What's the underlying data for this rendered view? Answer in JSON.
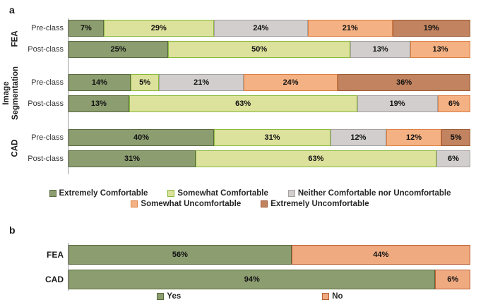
{
  "panel_a_letter": "a",
  "panel_b_letter": "b",
  "chart_data": [
    {
      "type": "bar",
      "panel": "a",
      "orientation": "horizontal",
      "stacked": true,
      "unit": "%",
      "xlim": [
        0,
        100
      ],
      "grid": false,
      "legend_position": "bottom",
      "series_labels": [
        "Extremely Comfortable",
        "Somewhat Comfortable",
        "Neither Comfortable nor Uncomfortable",
        "Somewhat Uncomfortable",
        "Extremely Uncomfortable"
      ],
      "series_fills": [
        "#8C9D70",
        "#DCE19C",
        "#D1CECD",
        "#F4B183",
        "#C28460"
      ],
      "series_borders": [
        "#5A6A3F",
        "#8ABA3C",
        "#A5A1A0",
        "#DC8044",
        "#9D5B35"
      ],
      "groups": [
        {
          "name": "FEA",
          "rows": [
            {
              "label": "Pre-class",
              "values": [
                7,
                29,
                24,
                21,
                19
              ]
            },
            {
              "label": "Post-class",
              "values": [
                25,
                50,
                13,
                13,
                0
              ]
            }
          ]
        },
        {
          "name": "Image\nSegmentation",
          "rows": [
            {
              "label": "Pre-class",
              "values": [
                14,
                5,
                21,
                24,
                36
              ]
            },
            {
              "label": "Post-class",
              "values": [
                13,
                63,
                19,
                6,
                0
              ]
            }
          ]
        },
        {
          "name": "CAD",
          "rows": [
            {
              "label": "Pre-class",
              "values": [
                40,
                31,
                12,
                12,
                5
              ]
            },
            {
              "label": "Post-class",
              "values": [
                31,
                63,
                6,
                0,
                0
              ]
            }
          ]
        }
      ]
    },
    {
      "type": "bar",
      "panel": "b",
      "orientation": "horizontal",
      "stacked": true,
      "unit": "%",
      "xlim": [
        0,
        100
      ],
      "grid": false,
      "legend_position": "bottom",
      "series_labels": [
        "Yes",
        "No"
      ],
      "series_fills": [
        "#8C9D70",
        "#F0AA80"
      ],
      "series_borders": [
        "#5A6A3F",
        "#B85F33"
      ],
      "groups": [
        {
          "name": "FEA",
          "values": [
            56,
            44
          ]
        },
        {
          "name": "CAD",
          "values": [
            94,
            6
          ]
        }
      ]
    }
  ]
}
